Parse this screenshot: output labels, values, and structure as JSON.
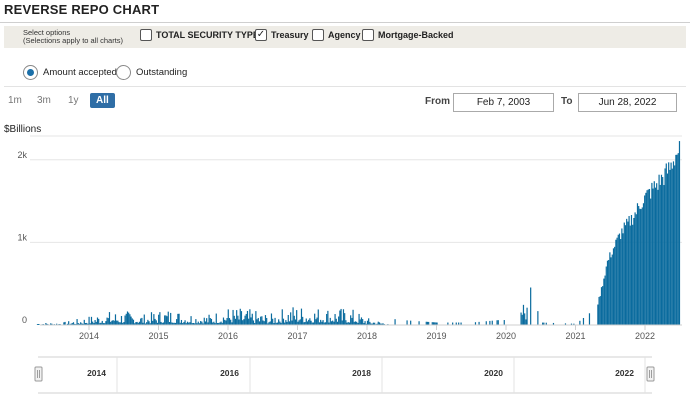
{
  "header": {
    "title": "REVERSE REPO CHART"
  },
  "options": {
    "label_line1": "Select options",
    "label_line2": "(Selections apply to all charts)",
    "checkboxes": [
      {
        "label": "TOTAL SECURITY TYPES",
        "checked": false
      },
      {
        "label": "Treasury",
        "checked": true
      },
      {
        "label": "Agency",
        "checked": false
      },
      {
        "label": "Mortgage-Backed",
        "checked": false
      }
    ]
  },
  "measure": {
    "options": [
      {
        "label": "Amount accepted",
        "selected": true
      },
      {
        "label": "Outstanding",
        "selected": false
      }
    ]
  },
  "range_selector": {
    "buttons": [
      "1m",
      "3m",
      "1y",
      "All"
    ],
    "active": "All",
    "from_label": "From",
    "from_value": "Feb 7, 2003",
    "to_label": "To",
    "to_value": "Jun 28, 2022"
  },
  "colors": {
    "series": "#0a6b9e",
    "accent": "#2f6ea6"
  },
  "chart_data": {
    "type": "bar",
    "ylabel": "$Billions",
    "y_ticks": [
      "0",
      "1k",
      "2k"
    ],
    "ylim": [
      0,
      2300
    ],
    "x_ticks": [
      "2014",
      "2015",
      "2016",
      "2017",
      "2018",
      "2019",
      "2020",
      "2021",
      "2022"
    ],
    "grid": true,
    "series": [
      {
        "values_x": [
          2013.35,
          2013.6,
          2013.9,
          2014.2,
          2014.5,
          2014.8,
          2015.1,
          2015.4,
          2015.7,
          2016.0,
          2016.3,
          2016.6,
          2016.9,
          2017.2,
          2017.5,
          2017.8,
          2018.0,
          2018.2,
          2018.5,
          2019.0,
          2019.5,
          2019.9,
          2020.1,
          2020.25,
          2020.5,
          2021.0,
          2021.25,
          2021.35,
          2021.45,
          2021.55,
          2021.65,
          2021.75,
          2021.85,
          2021.95,
          2022.05,
          2022.15,
          2022.25,
          2022.35,
          2022.45
        ],
        "values_y": [
          20,
          20,
          60,
          110,
          120,
          90,
          140,
          110,
          90,
          150,
          130,
          90,
          170,
          150,
          150,
          130,
          60,
          30,
          20,
          10,
          10,
          20,
          20,
          240,
          10,
          5,
          60,
          400,
          800,
          1000,
          1180,
          1290,
          1420,
          1580,
          1680,
          1780,
          1880,
          2000,
          2200
        ]
      }
    ]
  },
  "navigator": {
    "labels": [
      "2014",
      "2016",
      "2018",
      "2020",
      "2022"
    ]
  }
}
